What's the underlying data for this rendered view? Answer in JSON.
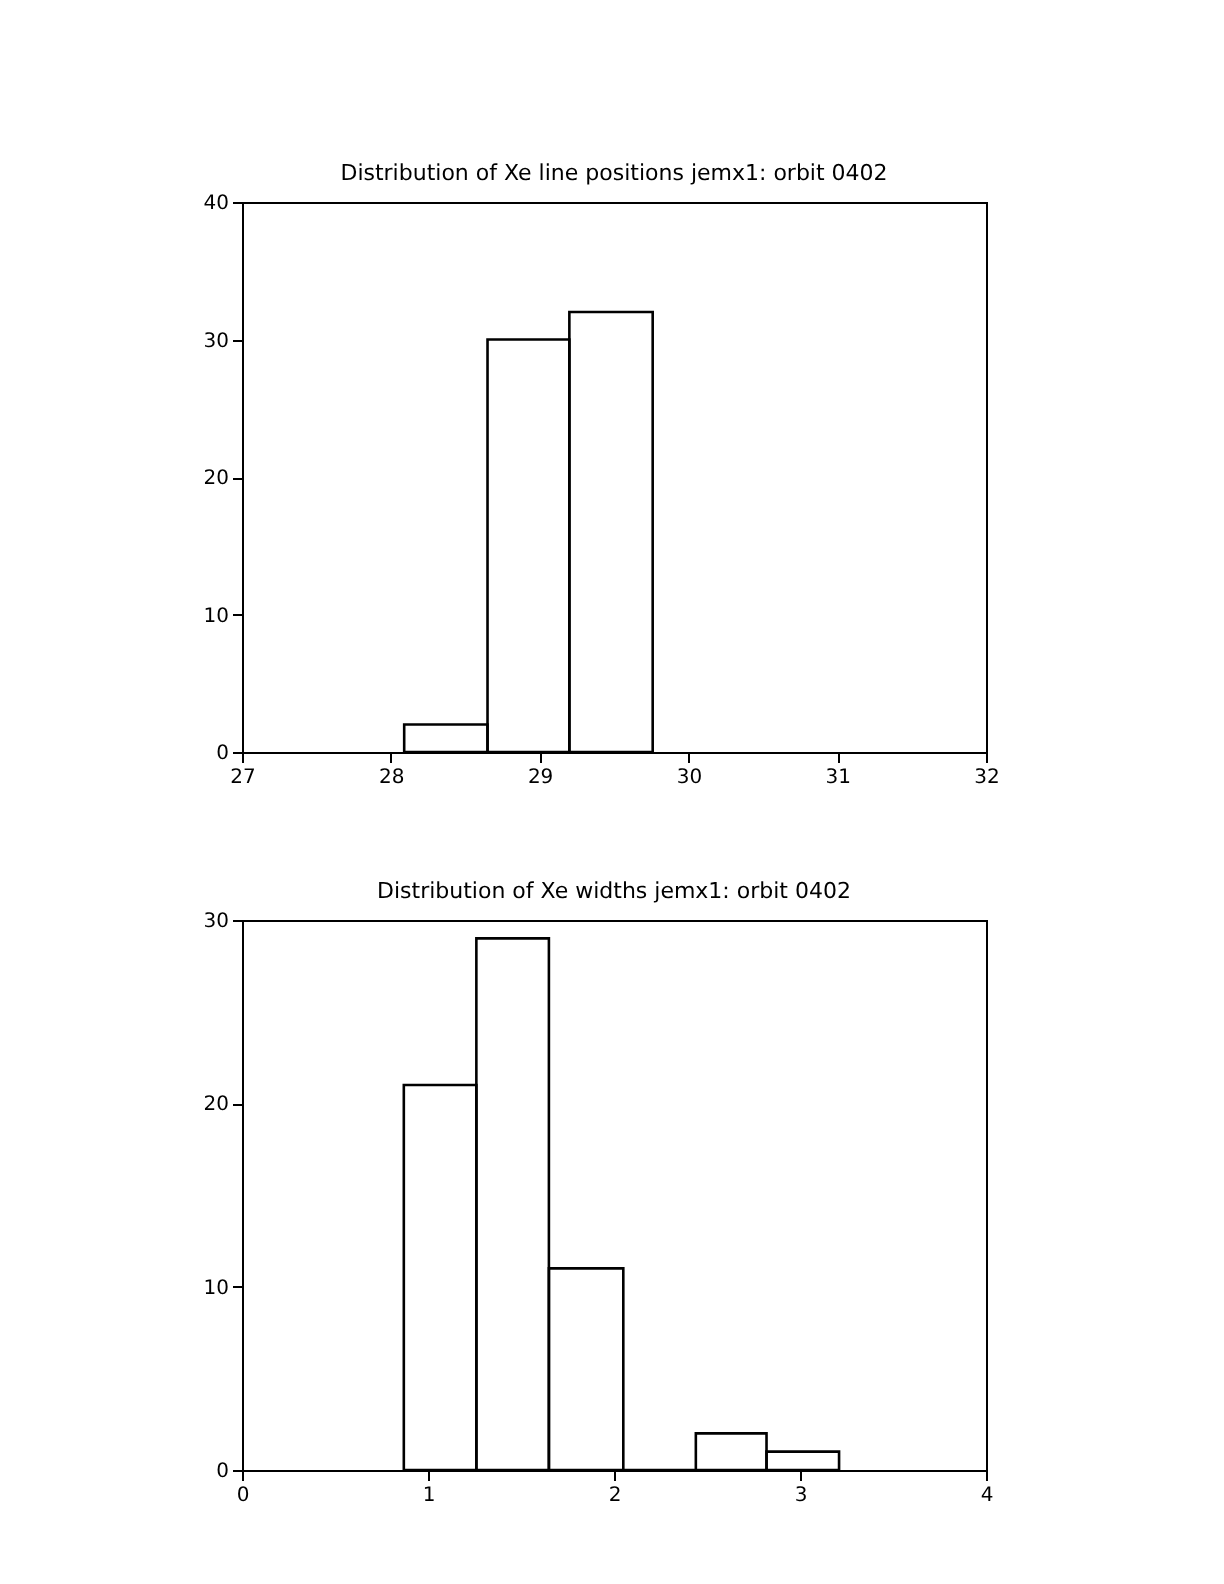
{
  "chart_data": [
    {
      "type": "histogram",
      "title": "Distribution of Xe line positions jemx1: orbit 0402",
      "bins": [
        28.09,
        28.65,
        29.2,
        29.76
      ],
      "values": [
        2,
        30,
        32
      ],
      "color": "#000000",
      "xlim": [
        27,
        32
      ],
      "xticks": [
        27,
        28,
        29,
        30,
        31,
        32
      ],
      "ylim": [
        0,
        40
      ],
      "yticks": [
        0,
        10,
        20,
        30,
        40
      ],
      "grid": false
    },
    {
      "type": "histogram",
      "title": "Distribution of Xe widths jemx1: orbit 0402",
      "bins": [
        0.87,
        1.26,
        1.65,
        2.05,
        2.44,
        2.82,
        3.21
      ],
      "values": [
        21,
        29,
        11,
        0,
        2,
        1
      ],
      "color": "#000000",
      "xlim": [
        0,
        4
      ],
      "xticks": [
        0,
        1,
        2,
        3,
        4
      ],
      "ylim": [
        0,
        30
      ],
      "yticks": [
        0,
        10,
        20,
        30
      ],
      "grid": false
    }
  ]
}
